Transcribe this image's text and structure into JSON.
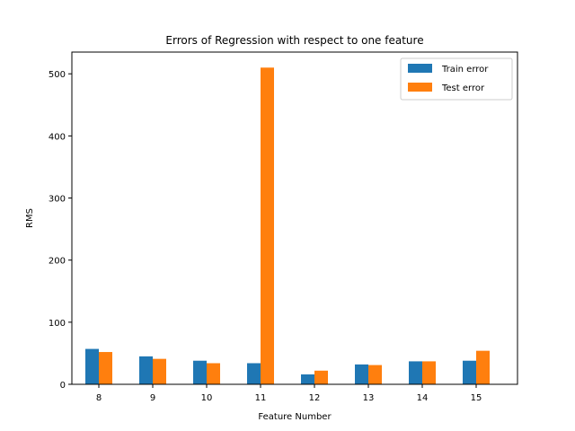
{
  "chart_data": {
    "type": "bar",
    "title": "Errors of Regression with respect to one feature",
    "xlabel": "Feature Number",
    "ylabel": "RMS",
    "categories": [
      "8",
      "9",
      "10",
      "11",
      "12",
      "13",
      "14",
      "15"
    ],
    "series": [
      {
        "name": "Train error",
        "color": "#1f77b4",
        "values": [
          57,
          45,
          38,
          34,
          16,
          32,
          37,
          38
        ]
      },
      {
        "name": "Test error",
        "color": "#ff7f0e",
        "values": [
          52,
          41,
          34,
          510,
          22,
          31,
          37,
          54
        ]
      }
    ],
    "ylim": [
      0,
      535
    ],
    "yticks": [
      0,
      100,
      200,
      300,
      400,
      500
    ],
    "grid": false,
    "legend": "top-right"
  }
}
